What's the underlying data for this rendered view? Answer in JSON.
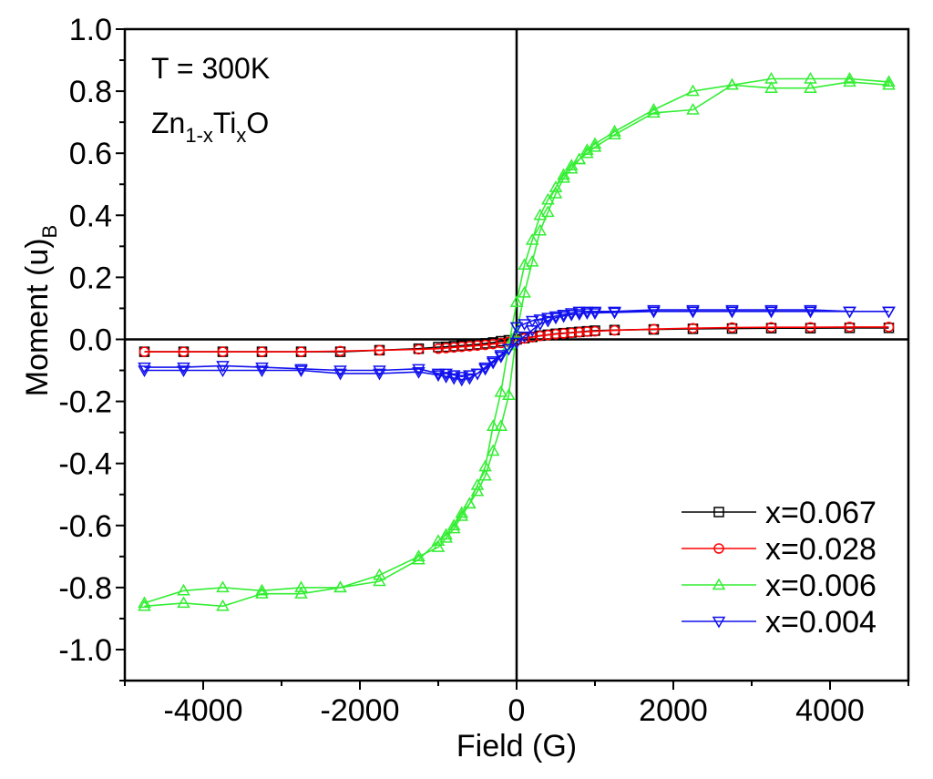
{
  "chart_data": {
    "type": "scatter",
    "xlabel": "Field (G)",
    "ylabel_main": "Moment (u)",
    "ylabel_sub": "B",
    "xlim": [
      -5000,
      5000
    ],
    "ylim": [
      -1.1,
      1.0
    ],
    "x_ticks": [
      -4000,
      -2000,
      0,
      2000,
      4000
    ],
    "x_tick_labels": [
      "-4000",
      "-2000",
      "0",
      "2000",
      "4000"
    ],
    "y_ticks": [
      -1.0,
      -0.8,
      -0.6,
      -0.4,
      -0.2,
      0.0,
      0.2,
      0.4,
      0.6,
      0.8,
      1.0
    ],
    "y_tick_labels": [
      "-1.0",
      "-0.8",
      "-0.6",
      "-0.4",
      "-0.2",
      "0.0",
      "0.2",
      "0.4",
      "0.6",
      "0.8",
      "1.0"
    ],
    "annotation_temp": "T = 300K",
    "annotation_formula": {
      "a": "Zn",
      "b": "1-x",
      "c": "Ti",
      "d": "x",
      "e": "O"
    },
    "legend_position": "bottom-right",
    "zero_lines": true,
    "series": [
      {
        "name": "x=0.067",
        "color": "#000000",
        "marker": "square",
        "x": [
          -4750,
          -4250,
          -3750,
          -3250,
          -2750,
          -2250,
          -1750,
          -1250,
          -1000,
          -900,
          -800,
          -700,
          -600,
          -500,
          -400,
          -300,
          -200,
          -100,
          0,
          100,
          200,
          300,
          400,
          500,
          600,
          700,
          800,
          900,
          1000,
          1250,
          1750,
          2250,
          2750,
          3250,
          3750,
          4250,
          4750
        ],
        "y": [
          -0.04,
          -0.04,
          -0.04,
          -0.04,
          -0.04,
          -0.04,
          -0.035,
          -0.03,
          -0.025,
          -0.024,
          -0.022,
          -0.02,
          -0.018,
          -0.016,
          -0.013,
          -0.01,
          -0.006,
          -0.003,
          0.0,
          0.004,
          0.008,
          0.012,
          0.015,
          0.018,
          0.02,
          0.022,
          0.024,
          0.026,
          0.028,
          0.03,
          0.032,
          0.034,
          0.035,
          0.036,
          0.036,
          0.037,
          0.037
        ]
      },
      {
        "name": "x=0.028",
        "color": "#ff0000",
        "marker": "circle",
        "x": [
          -4750,
          -4250,
          -3750,
          -3250,
          -2750,
          -2250,
          -1750,
          -1250,
          -1000,
          -900,
          -800,
          -700,
          -600,
          -500,
          -400,
          -300,
          -200,
          -100,
          0,
          100,
          200,
          300,
          400,
          500,
          600,
          700,
          800,
          900,
          1000,
          1250,
          1750,
          2250,
          2750,
          3250,
          3750,
          4250,
          4750
        ],
        "y": [
          -0.04,
          -0.04,
          -0.04,
          -0.04,
          -0.04,
          -0.038,
          -0.035,
          -0.032,
          -0.03,
          -0.028,
          -0.026,
          -0.024,
          -0.022,
          -0.02,
          -0.018,
          -0.015,
          -0.012,
          -0.008,
          -0.004,
          0.003,
          0.007,
          0.011,
          0.014,
          0.017,
          0.019,
          0.021,
          0.023,
          0.025,
          0.026,
          0.029,
          0.033,
          0.036,
          0.038,
          0.039,
          0.039,
          0.04,
          0.04
        ]
      },
      {
        "name": "x=0.006",
        "color": "#33ee33",
        "marker": "triangle-up",
        "x": [
          -4750,
          -4250,
          -3750,
          -3250,
          -2750,
          -2250,
          -1750,
          -1250,
          -1000,
          -900,
          -800,
          -700,
          -600,
          -500,
          -400,
          -300,
          -200,
          -100,
          0,
          100,
          200,
          300,
          400,
          500,
          600,
          700,
          800,
          900,
          1000,
          1250,
          1750,
          2250,
          2750,
          3250,
          3750,
          4250,
          4750,
          4750,
          4250,
          3750,
          3250,
          2750,
          2250,
          1750,
          1250,
          1000,
          900,
          800,
          700,
          600,
          500,
          400,
          300,
          200,
          100,
          0,
          -100,
          -200,
          -300,
          -400,
          -500,
          -600,
          -700,
          -800,
          -900,
          -1000,
          -1250,
          -1750,
          -2250,
          -2750,
          -3250,
          -3750,
          -4250,
          -4750
        ],
        "y": [
          -0.85,
          -0.81,
          -0.8,
          -0.81,
          -0.8,
          -0.8,
          -0.76,
          -0.7,
          -0.67,
          -0.64,
          -0.61,
          -0.57,
          -0.53,
          -0.47,
          -0.41,
          -0.28,
          -0.17,
          -0.02,
          0.12,
          0.24,
          0.32,
          0.4,
          0.45,
          0.49,
          0.53,
          0.56,
          0.58,
          0.61,
          0.63,
          0.67,
          0.74,
          0.8,
          0.82,
          0.84,
          0.84,
          0.84,
          0.83,
          0.82,
          0.83,
          0.81,
          0.81,
          0.82,
          0.74,
          0.73,
          0.66,
          0.62,
          0.6,
          0.58,
          0.55,
          0.52,
          0.47,
          0.41,
          0.35,
          0.25,
          0.15,
          0.02,
          -0.18,
          -0.28,
          -0.36,
          -0.44,
          -0.49,
          -0.53,
          -0.56,
          -0.6,
          -0.63,
          -0.65,
          -0.71,
          -0.78,
          -0.8,
          -0.82,
          -0.82,
          -0.86,
          -0.85,
          -0.86
        ]
      },
      {
        "name": "x=0.004",
        "color": "#1111ee",
        "marker": "triangle-down",
        "x": [
          -4750,
          -4250,
          -3750,
          -3250,
          -2750,
          -2250,
          -1750,
          -1250,
          -1000,
          -900,
          -800,
          -700,
          -600,
          -500,
          -400,
          -300,
          -200,
          -100,
          0,
          100,
          200,
          300,
          400,
          500,
          600,
          700,
          800,
          900,
          1000,
          1250,
          1750,
          2250,
          2750,
          3250,
          3750,
          4250,
          4750,
          4750,
          4250,
          3750,
          3250,
          2750,
          2250,
          1750,
          1250,
          1000,
          900,
          800,
          700,
          600,
          500,
          400,
          300,
          200,
          100,
          0,
          -100,
          -200,
          -300,
          -400,
          -500,
          -600,
          -700,
          -800,
          -900,
          -1000,
          -1250,
          -1750,
          -2250,
          -2750,
          -3250,
          -3750,
          -4250,
          -4750
        ],
        "y": [
          -0.09,
          -0.09,
          -0.085,
          -0.09,
          -0.095,
          -0.1,
          -0.1,
          -0.095,
          -0.11,
          -0.11,
          -0.115,
          -0.12,
          -0.115,
          -0.11,
          -0.09,
          -0.07,
          -0.05,
          -0.03,
          -0.01,
          0.01,
          0.03,
          0.05,
          0.06,
          0.07,
          0.075,
          0.08,
          0.082,
          0.085,
          0.085,
          0.087,
          0.09,
          0.09,
          0.09,
          0.09,
          0.09,
          0.09,
          0.09,
          0.09,
          0.09,
          0.095,
          0.095,
          0.095,
          0.095,
          0.095,
          0.09,
          0.09,
          0.09,
          0.09,
          0.085,
          0.08,
          0.075,
          0.07,
          0.065,
          0.06,
          0.05,
          0.04,
          -0.03,
          -0.055,
          -0.075,
          -0.095,
          -0.11,
          -0.125,
          -0.13,
          -0.125,
          -0.12,
          -0.115,
          -0.105,
          -0.11,
          -0.11,
          -0.1,
          -0.1,
          -0.1,
          -0.1,
          -0.1
        ]
      }
    ]
  }
}
